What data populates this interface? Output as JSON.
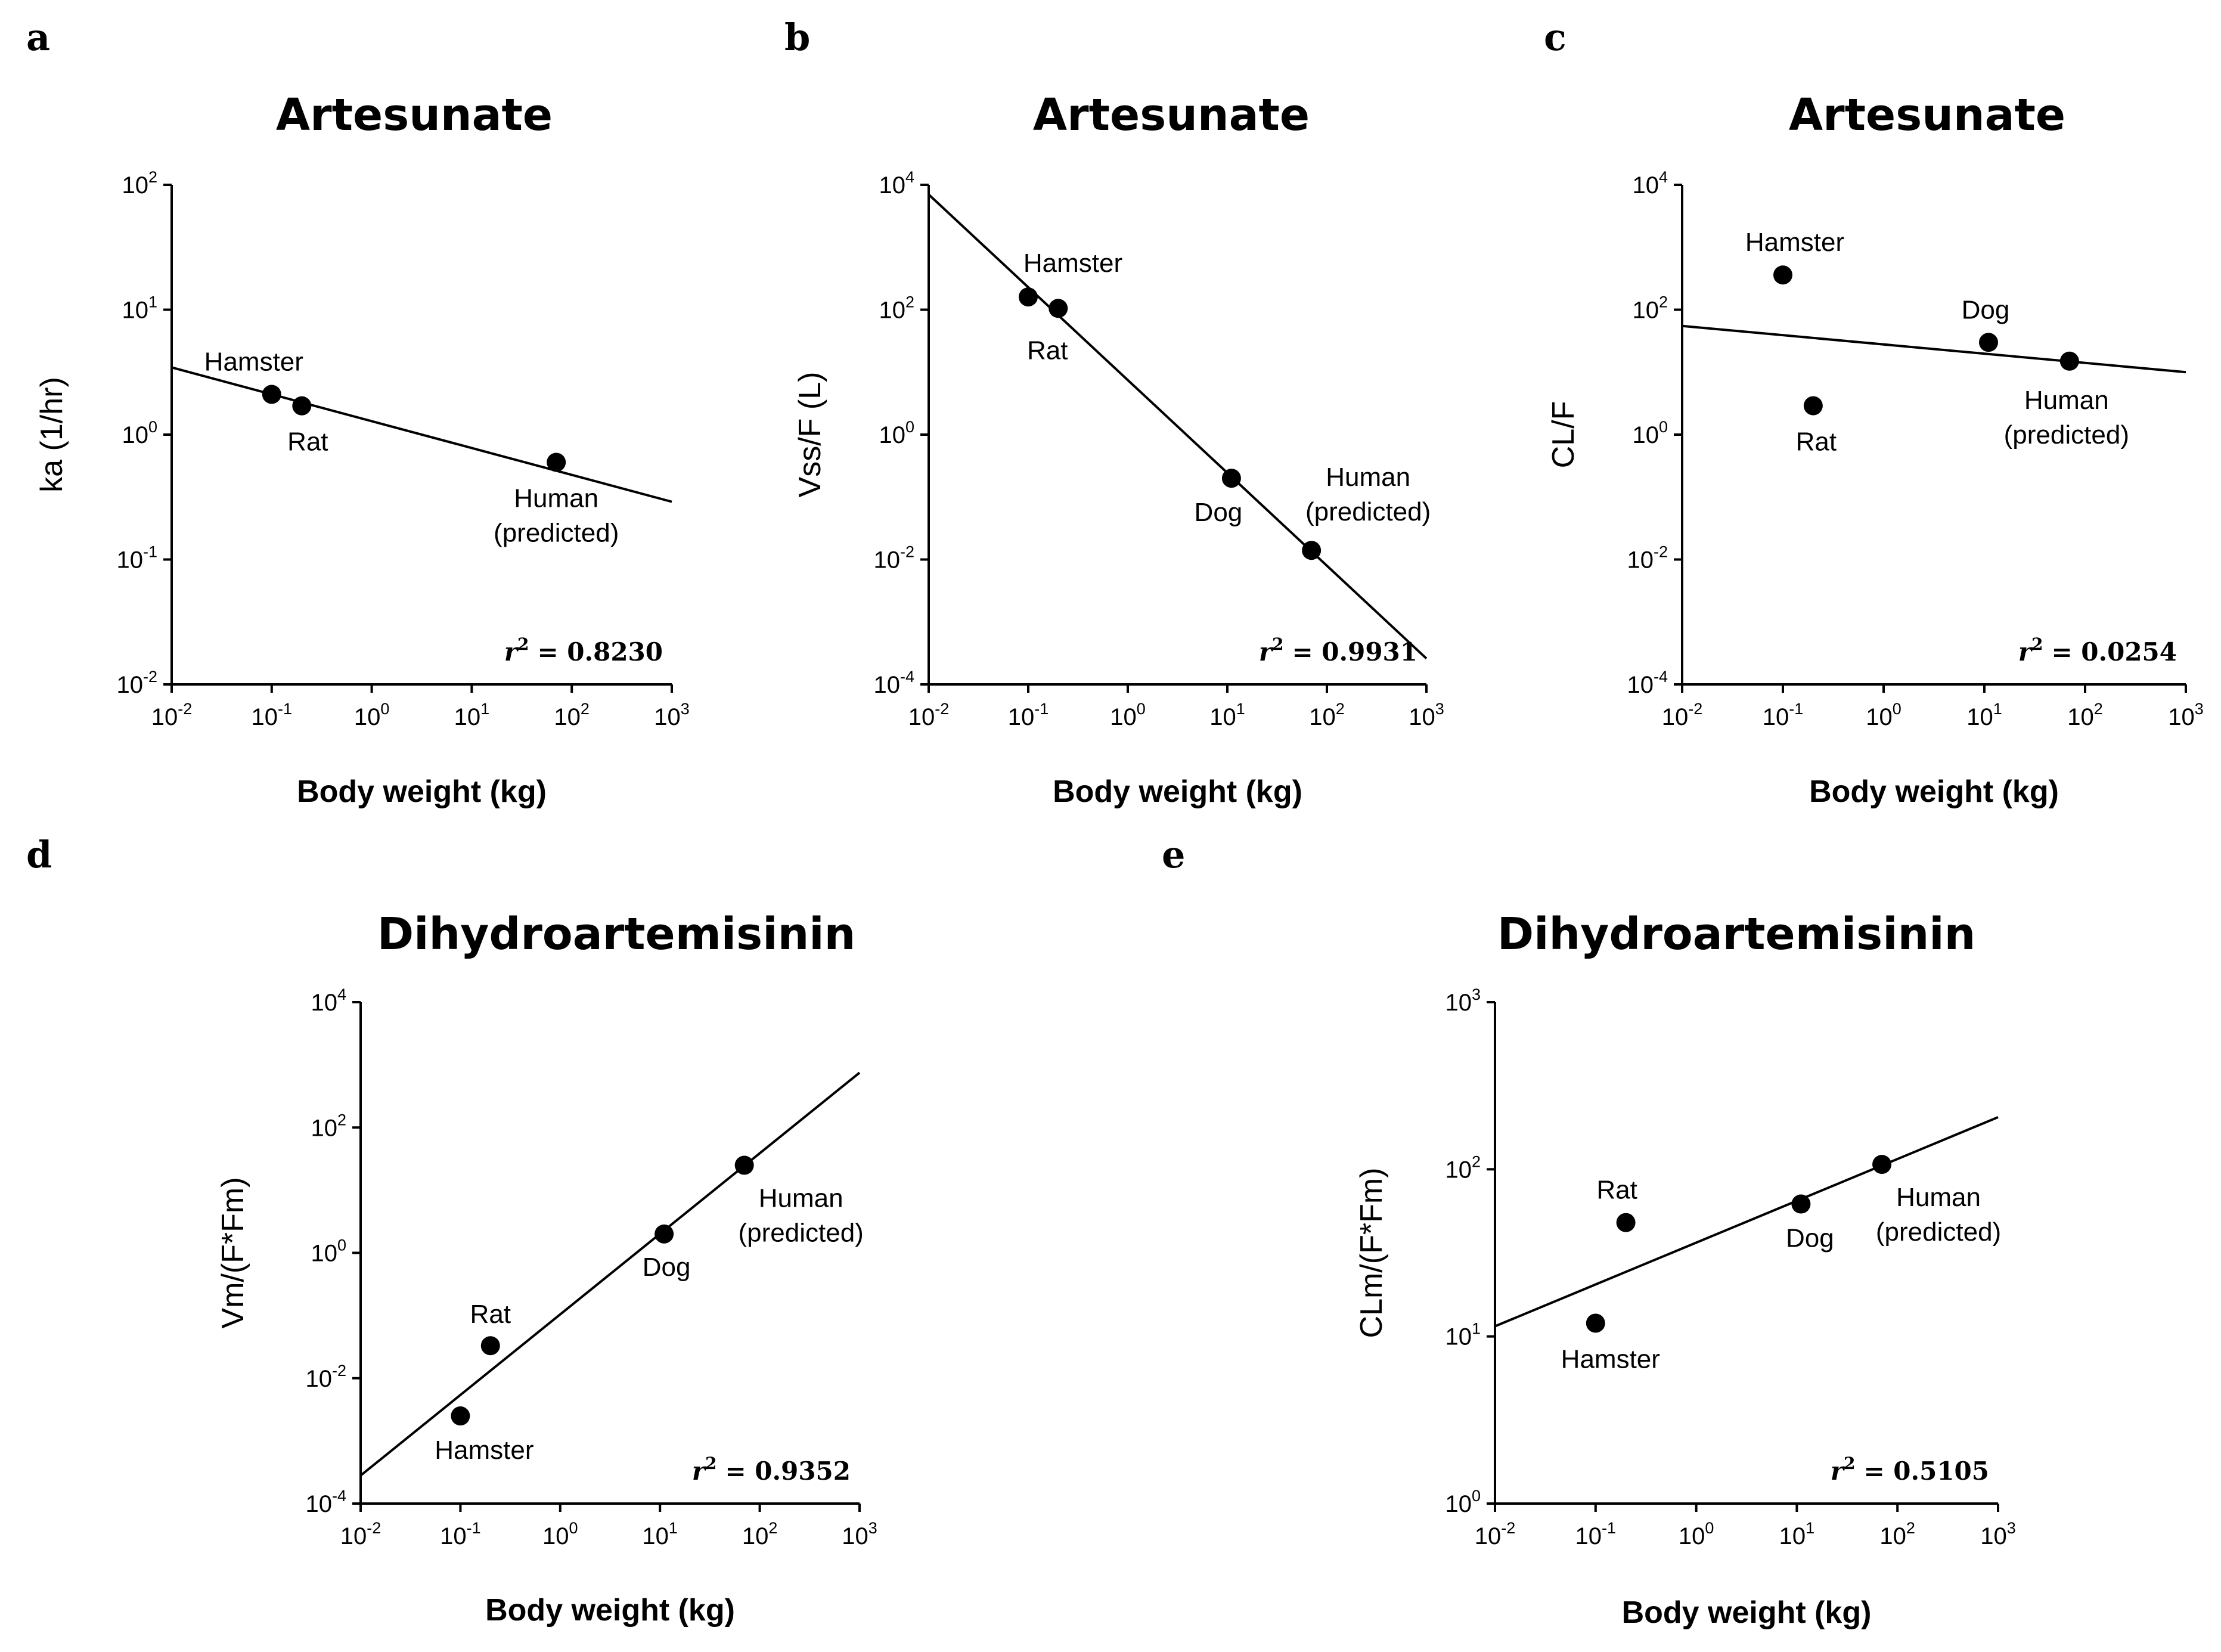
{
  "chart_data": [
    {
      "type": "scatter",
      "panel": "a",
      "title": "Artesunate",
      "xlabel": "Body weight (kg)",
      "ylabel": "ka (1/hr)",
      "xscale": "log",
      "yscale": "log",
      "xlim": [
        0.01,
        1000
      ],
      "ylim": [
        0.01,
        100
      ],
      "xticks": [
        {
          "base": "10",
          "exp": "-2"
        },
        {
          "base": "10",
          "exp": "-1"
        },
        {
          "base": "10",
          "exp": "0"
        },
        {
          "base": "10",
          "exp": "1"
        },
        {
          "base": "10",
          "exp": "2"
        },
        {
          "base": "10",
          "exp": "3"
        }
      ],
      "yticks": [
        {
          "base": "10",
          "exp": "-2"
        },
        {
          "base": "10",
          "exp": "-1"
        },
        {
          "base": "10",
          "exp": "0"
        },
        {
          "base": "10",
          "exp": "1"
        },
        {
          "base": "10",
          "exp": "2"
        }
      ],
      "points": [
        {
          "label": "Hamster",
          "x": 0.1,
          "y": 2.1
        },
        {
          "label": "Rat",
          "x": 0.2,
          "y": 1.7
        },
        {
          "label": "Human\n(predicted)",
          "x": 70,
          "y": 0.6
        }
      ],
      "fit_line": {
        "x": [
          0.01,
          1000
        ],
        "y": [
          3.45,
          0.29
        ]
      },
      "r2": {
        "symbol": "r",
        "sup": "2",
        "value": "= 0.8230"
      },
      "grid": false
    },
    {
      "type": "scatter",
      "panel": "b",
      "title": "Artesunate",
      "xlabel": "Body weight (kg)",
      "ylabel": "Vss/F (L)",
      "xscale": "log",
      "yscale": "log",
      "xlim": [
        0.01,
        1000
      ],
      "ylim": [
        0.0001,
        10000
      ],
      "xticks": [
        {
          "base": "10",
          "exp": "-2"
        },
        {
          "base": "10",
          "exp": "-1"
        },
        {
          "base": "10",
          "exp": "0"
        },
        {
          "base": "10",
          "exp": "1"
        },
        {
          "base": "10",
          "exp": "2"
        },
        {
          "base": "10",
          "exp": "3"
        }
      ],
      "yticks": [
        {
          "base": "10",
          "exp": "-4"
        },
        {
          "base": "10",
          "exp": "-2"
        },
        {
          "base": "10",
          "exp": "0"
        },
        {
          "base": "10",
          "exp": "2"
        },
        {
          "base": "10",
          "exp": "4"
        }
      ],
      "points": [
        {
          "label": "Hamster",
          "x": 0.1,
          "y": 160
        },
        {
          "label": "Rat",
          "x": 0.2,
          "y": 105
        },
        {
          "label": "Dog",
          "x": 11,
          "y": 0.2
        },
        {
          "label": "Human\n(predicted)",
          "x": 70,
          "y": 0.014
        }
      ],
      "fit_line": {
        "x": [
          0.01,
          1000
        ],
        "y": [
          7000,
          0.00026
        ]
      },
      "r2": {
        "symbol": "r",
        "sup": "2",
        "value": "= 0.9931"
      },
      "grid": false
    },
    {
      "type": "scatter",
      "panel": "c",
      "title": "Artesunate",
      "xlabel": "Body weight (kg)",
      "ylabel": "CL/F",
      "xscale": "log",
      "yscale": "log",
      "xlim": [
        0.01,
        1000
      ],
      "ylim": [
        0.0001,
        10000
      ],
      "xticks": [
        {
          "base": "10",
          "exp": "-2"
        },
        {
          "base": "10",
          "exp": "-1"
        },
        {
          "base": "10",
          "exp": "0"
        },
        {
          "base": "10",
          "exp": "1"
        },
        {
          "base": "10",
          "exp": "2"
        },
        {
          "base": "10",
          "exp": "3"
        }
      ],
      "yticks": [
        {
          "base": "10",
          "exp": "-4"
        },
        {
          "base": "10",
          "exp": "-2"
        },
        {
          "base": "10",
          "exp": "0"
        },
        {
          "base": "10",
          "exp": "2"
        },
        {
          "base": "10",
          "exp": "4"
        }
      ],
      "points": [
        {
          "label": "Hamster",
          "x": 0.1,
          "y": 360
        },
        {
          "label": "Rat",
          "x": 0.2,
          "y": 2.9
        },
        {
          "label": "Dog",
          "x": 11,
          "y": 30
        },
        {
          "label": "Human\n(predicted)",
          "x": 70,
          "y": 15
        }
      ],
      "fit_line": {
        "x": [
          0.01,
          1000
        ],
        "y": [
          55,
          10
        ]
      },
      "r2": {
        "symbol": "r",
        "sup": "2",
        "value": "= 0.0254"
      },
      "grid": false
    },
    {
      "type": "scatter",
      "panel": "d",
      "title": "Dihydroartemisinin",
      "xlabel": "Body weight (kg)",
      "ylabel": "Vm/(F*Fm)",
      "xscale": "log",
      "yscale": "log",
      "xlim": [
        0.01,
        1000
      ],
      "ylim": [
        0.0001,
        10000
      ],
      "xticks": [
        {
          "base": "10",
          "exp": "-2"
        },
        {
          "base": "10",
          "exp": "-1"
        },
        {
          "base": "10",
          "exp": "0"
        },
        {
          "base": "10",
          "exp": "1"
        },
        {
          "base": "10",
          "exp": "2"
        },
        {
          "base": "10",
          "exp": "3"
        }
      ],
      "yticks": [
        {
          "base": "10",
          "exp": "-4"
        },
        {
          "base": "10",
          "exp": "-2"
        },
        {
          "base": "10",
          "exp": "0"
        },
        {
          "base": "10",
          "exp": "2"
        },
        {
          "base": "10",
          "exp": "4"
        }
      ],
      "points": [
        {
          "label": "Hamster",
          "x": 0.1,
          "y": 0.0025
        },
        {
          "label": "Rat",
          "x": 0.2,
          "y": 0.033
        },
        {
          "label": "Dog",
          "x": 11,
          "y": 2
        },
        {
          "label": "Human\n(predicted)",
          "x": 70,
          "y": 25
        }
      ],
      "fit_line": {
        "x": [
          0.01,
          1000
        ],
        "y": [
          0.00028,
          750
        ]
      },
      "r2": {
        "symbol": "r",
        "sup": "2",
        "value": "= 0.9352"
      },
      "grid": false
    },
    {
      "type": "scatter",
      "panel": "e",
      "title": "Dihydroartemisinin",
      "xlabel": "Body weight (kg)",
      "ylabel": "CLm/(F*Fm)",
      "xscale": "log",
      "yscale": "log",
      "xlim": [
        0.01,
        1000
      ],
      "ylim": [
        1,
        1000
      ],
      "xticks": [
        {
          "base": "10",
          "exp": "-2"
        },
        {
          "base": "10",
          "exp": "-1"
        },
        {
          "base": "10",
          "exp": "0"
        },
        {
          "base": "10",
          "exp": "1"
        },
        {
          "base": "10",
          "exp": "2"
        },
        {
          "base": "10",
          "exp": "3"
        }
      ],
      "yticks": [
        {
          "base": "10",
          "exp": "0"
        },
        {
          "base": "10",
          "exp": "1"
        },
        {
          "base": "10",
          "exp": "2"
        },
        {
          "base": "10",
          "exp": "3"
        }
      ],
      "points": [
        {
          "label": "Hamster",
          "x": 0.1,
          "y": 12
        },
        {
          "label": "Rat",
          "x": 0.2,
          "y": 48
        },
        {
          "label": "Dog",
          "x": 11,
          "y": 62
        },
        {
          "label": "Human\n(predicted)",
          "x": 70,
          "y": 107
        }
      ],
      "fit_line": {
        "x": [
          0.01,
          1000
        ],
        "y": [
          11.5,
          205
        ]
      },
      "r2": {
        "symbol": "r",
        "sup": "2",
        "value": "= 0.5105"
      },
      "grid": false
    }
  ]
}
